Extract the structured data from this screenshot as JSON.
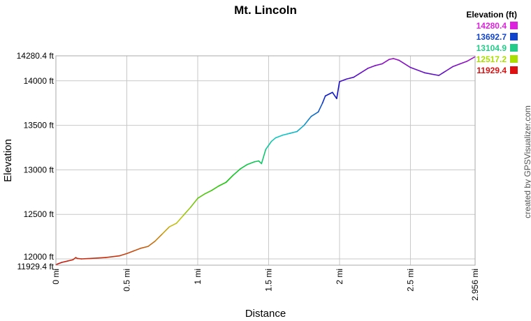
{
  "chart_data": {
    "type": "line",
    "title": "Mt. Lincoln",
    "xlabel": "Distance",
    "ylabel": "Elevation",
    "xlim": [
      0,
      2.956
    ],
    "ylim": [
      11929.4,
      14280.4
    ],
    "x_ticks": [
      {
        "value": 0,
        "label": "0 mi"
      },
      {
        "value": 0.5,
        "label": "0.5 mi"
      },
      {
        "value": 1,
        "label": "1 mi"
      },
      {
        "value": 1.5,
        "label": "1.5 mi"
      },
      {
        "value": 2,
        "label": "2 mi"
      },
      {
        "value": 2.5,
        "label": "2.5 mi"
      },
      {
        "value": 2.956,
        "label": "2.956 mi"
      }
    ],
    "y_ticks": [
      {
        "value": 11929.4,
        "label": "11929.4 ft"
      },
      {
        "value": 12000,
        "label": "12000 ft"
      },
      {
        "value": 12500,
        "label": "12500 ft"
      },
      {
        "value": 13000,
        "label": "13000 ft"
      },
      {
        "value": 13500,
        "label": "13500 ft"
      },
      {
        "value": 14000,
        "label": "14000 ft"
      },
      {
        "value": 14280.4,
        "label": "14280.4 ft"
      }
    ],
    "grid": true,
    "legend": {
      "title": "Elevation (ft)",
      "placement": "top-right",
      "entries": [
        {
          "label": "14280.4",
          "color": "#dd22dd"
        },
        {
          "label": "13692.7",
          "color": "#1144cc"
        },
        {
          "label": "13104.9",
          "color": "#22cc88"
        },
        {
          "label": "12517.2",
          "color": "#aadd00"
        },
        {
          "label": "11929.4",
          "color": "#dd1111"
        }
      ]
    },
    "series": [
      {
        "x": [
          0,
          0.04,
          0.08,
          0.12,
          0.14,
          0.15,
          0.18,
          0.25,
          0.35,
          0.45,
          0.5,
          0.55,
          0.6,
          0.65,
          0.7,
          0.75,
          0.8,
          0.85,
          0.9,
          0.95,
          1.0,
          1.05,
          1.1,
          1.15,
          1.2,
          1.25,
          1.3,
          1.35,
          1.4,
          1.43,
          1.45,
          1.48,
          1.52,
          1.55,
          1.6,
          1.65,
          1.7,
          1.75,
          1.78,
          1.8,
          1.85,
          1.88,
          1.9,
          1.95,
          1.98,
          2.0,
          2.05,
          2.1,
          2.15,
          2.2,
          2.25,
          2.3,
          2.35,
          2.38,
          2.42,
          2.5,
          2.6,
          2.7,
          2.75,
          2.8,
          2.85,
          2.9,
          2.956
        ],
        "y": [
          11935,
          11960,
          11975,
          11990,
          12015,
          12005,
          12000,
          12005,
          12015,
          12035,
          12060,
          12090,
          12120,
          12140,
          12200,
          12280,
          12360,
          12400,
          12490,
          12580,
          12680,
          12730,
          12770,
          12820,
          12860,
          12940,
          13010,
          13060,
          13090,
          13100,
          13070,
          13230,
          13320,
          13360,
          13390,
          13410,
          13430,
          13500,
          13560,
          13600,
          13650,
          13750,
          13830,
          13870,
          13800,
          13990,
          14020,
          14040,
          14090,
          14140,
          14170,
          14190,
          14240,
          14250,
          14230,
          14150,
          14090,
          14060,
          14110,
          14160,
          14190,
          14220,
          14270
        ]
      }
    ],
    "credit": "created by GPSVisualizer.com"
  }
}
